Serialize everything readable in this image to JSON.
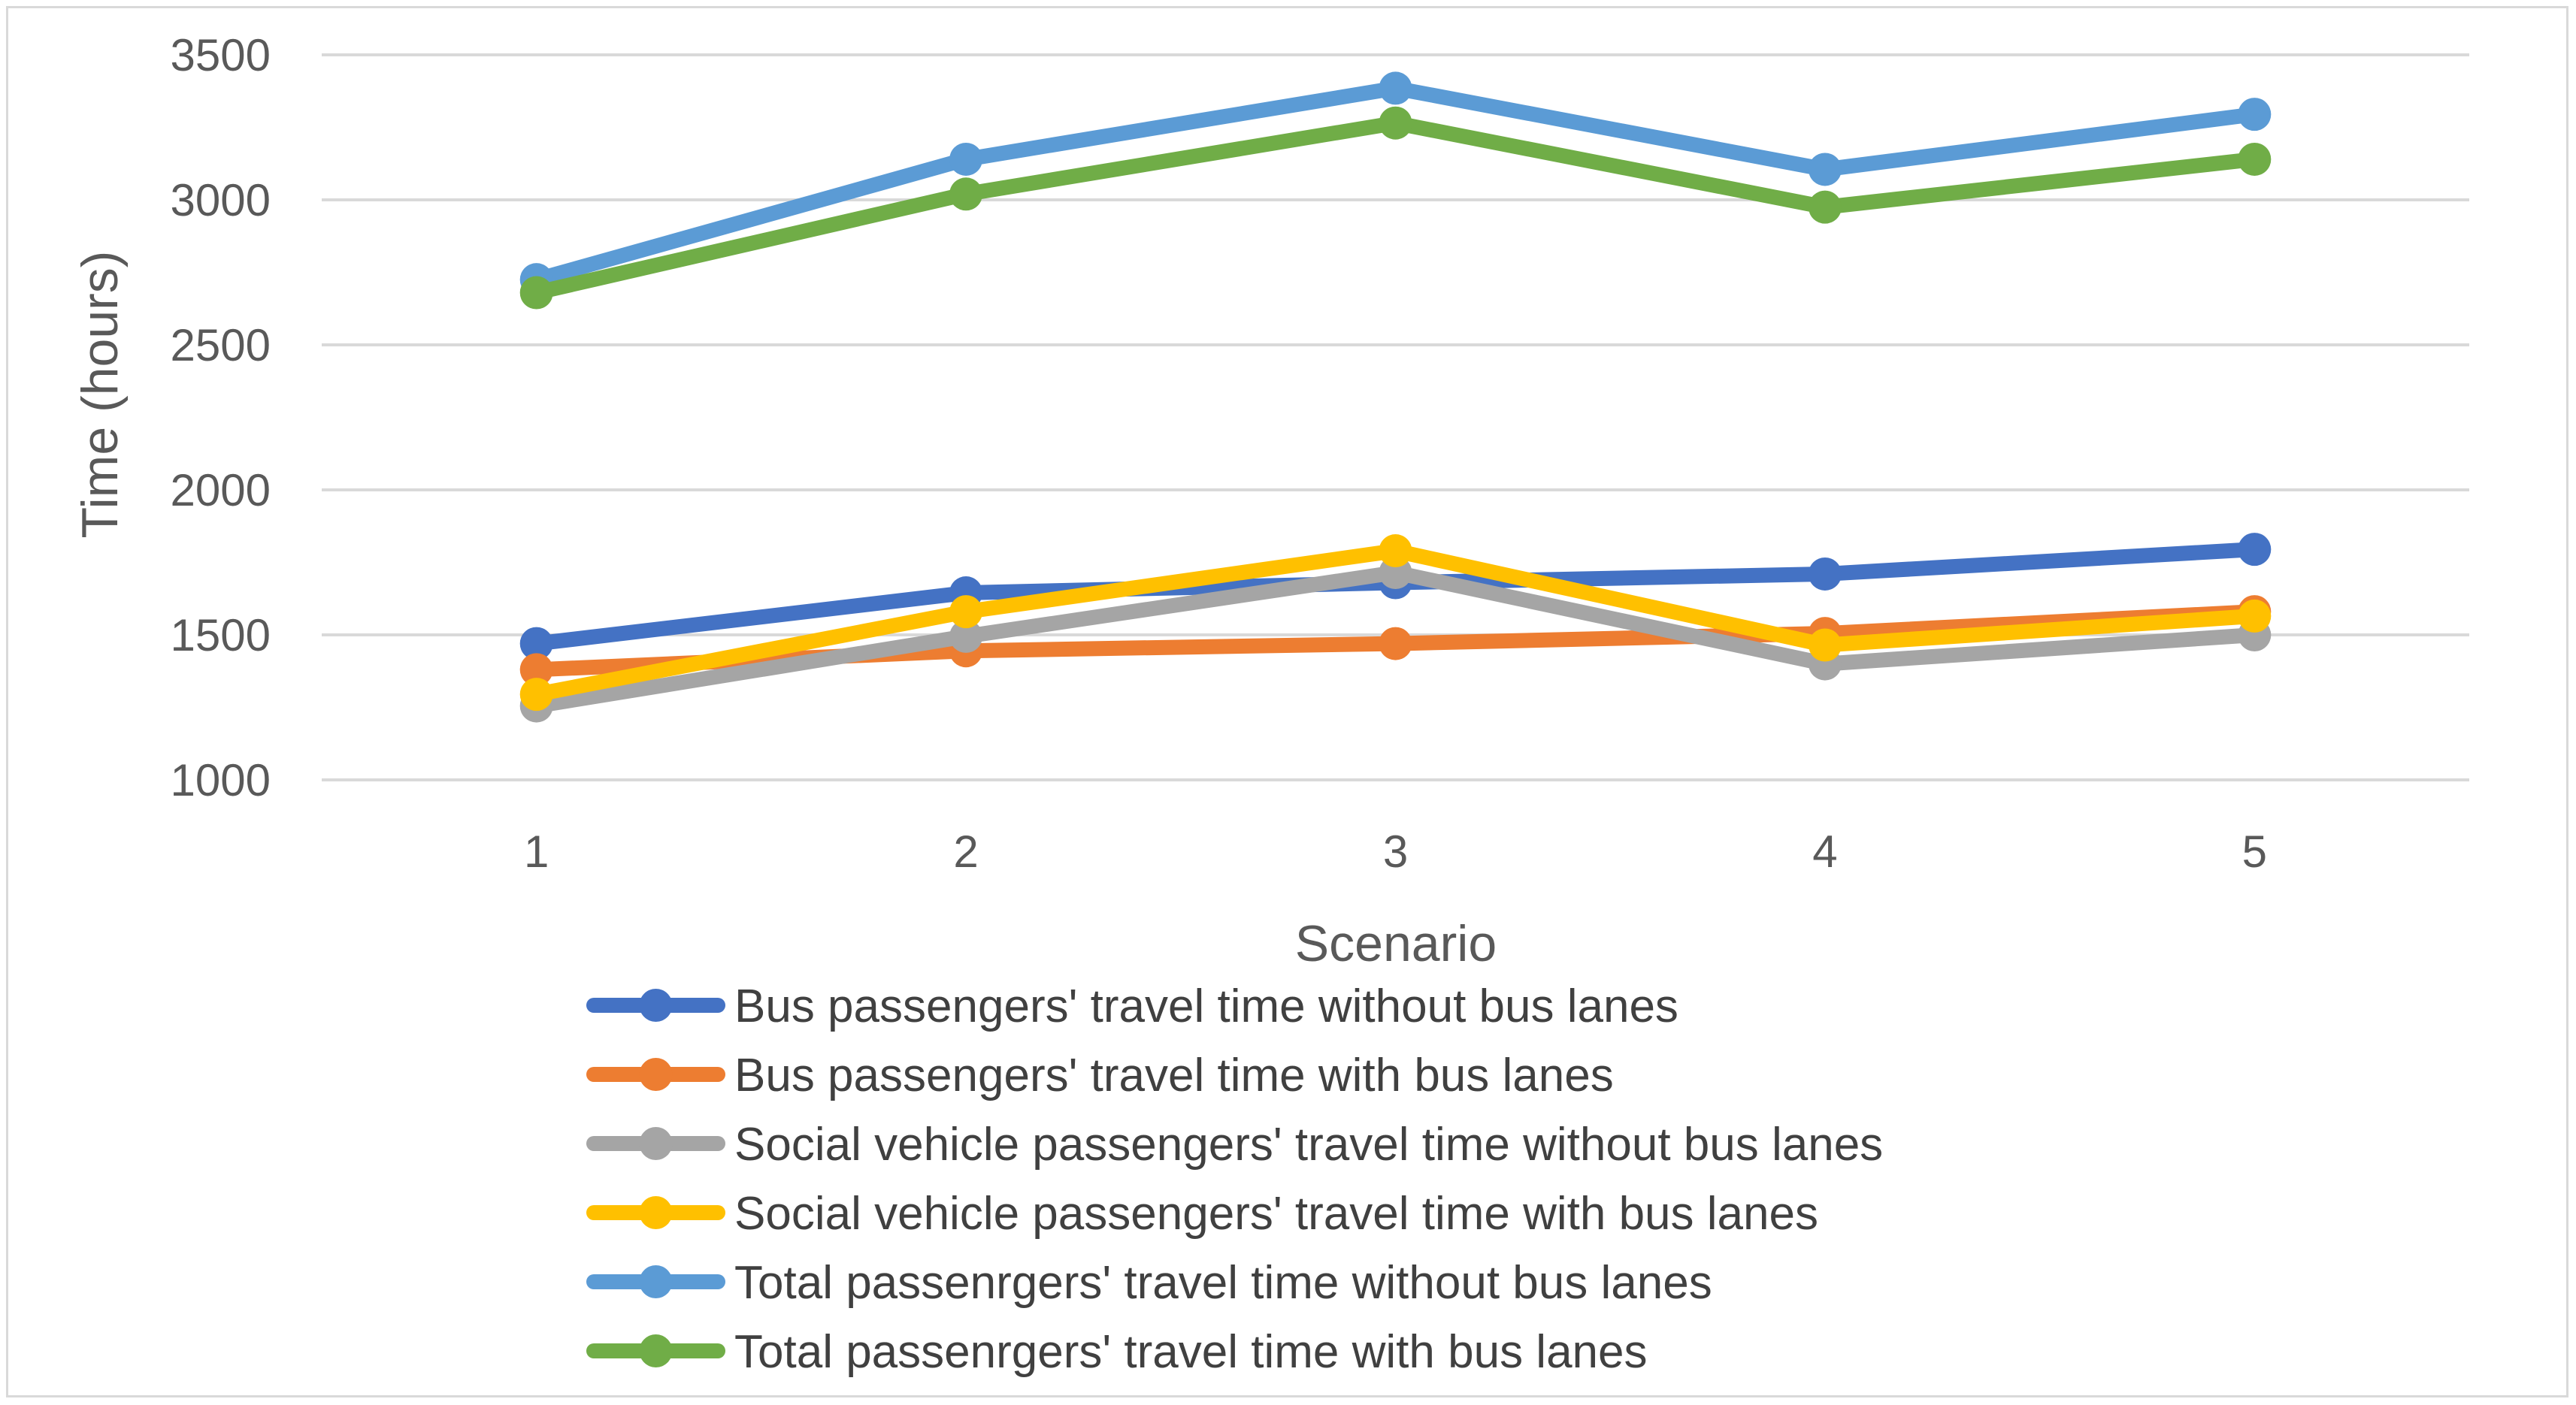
{
  "chart_data": {
    "type": "line",
    "title": "",
    "xlabel": "Scenario",
    "ylabel": "Time (hours)",
    "categories": [
      "1",
      "2",
      "3",
      "4",
      "5"
    ],
    "ylim": [
      1000,
      3500
    ],
    "yticks": [
      "1000",
      "1500",
      "2000",
      "2500",
      "3000",
      "3500"
    ],
    "grid": true,
    "legend_position": "bottom",
    "series": [
      {
        "name": "Bus passengers' travel time without bus lanes",
        "color": "#4472c4",
        "values": [
          1470,
          1645,
          1680,
          1710,
          1795
        ]
      },
      {
        "name": "Bus passengers' travel time with bus lanes",
        "color": "#ed7d31",
        "values": [
          1380,
          1445,
          1470,
          1505,
          1580
        ]
      },
      {
        "name": "Social vehicle passengers' travel time without bus lanes",
        "color": "#a5a5a5",
        "values": [
          1255,
          1495,
          1715,
          1400,
          1500
        ]
      },
      {
        "name": "Social vehicle passengers' travel time with bus lanes",
        "color": "#ffc000",
        "values": [
          1295,
          1580,
          1790,
          1465,
          1565
        ]
      },
      {
        "name": "Total passenrgers' travel time without bus lanes",
        "color": "#5b9bd5",
        "values": [
          2725,
          3140,
          3385,
          3105,
          3295
        ]
      },
      {
        "name": "Total passenrgers' travel time with bus lanes",
        "color": "#70ad47",
        "values": [
          2680,
          3020,
          3265,
          2975,
          3140
        ]
      }
    ]
  }
}
